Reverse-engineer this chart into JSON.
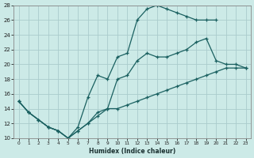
{
  "xlabel": "Humidex (Indice chaleur)",
  "xlim": [
    -0.5,
    23.5
  ],
  "ylim": [
    10,
    28
  ],
  "xticks": [
    0,
    1,
    2,
    3,
    4,
    5,
    6,
    7,
    8,
    9,
    10,
    11,
    12,
    13,
    14,
    15,
    16,
    17,
    18,
    19,
    20,
    21,
    22,
    23
  ],
  "yticks": [
    10,
    12,
    14,
    16,
    18,
    20,
    22,
    24,
    26,
    28
  ],
  "bg_color": "#cceae7",
  "grid_color": "#aacccc",
  "line_color": "#1a6060",
  "lines": [
    {
      "x": [
        0,
        1,
        2,
        3,
        4,
        5,
        6,
        7,
        8,
        9,
        10,
        11,
        12,
        13,
        14,
        15,
        16,
        17,
        18,
        19,
        20,
        21,
        22,
        23
      ],
      "y": [
        15,
        13.5,
        12.5,
        11.5,
        11,
        10,
        11.5,
        15.5,
        18.5,
        18,
        21,
        21.5,
        26,
        27.5,
        28,
        27.5,
        27,
        26.5,
        26,
        26,
        26,
        null,
        null,
        null
      ]
    },
    {
      "x": [
        0,
        1,
        2,
        3,
        4,
        5,
        6,
        7,
        8,
        9,
        10,
        11,
        12,
        13,
        14,
        15,
        16,
        17,
        18,
        19,
        20,
        21,
        22,
        23
      ],
      "y": [
        15,
        13.5,
        12.5,
        11.5,
        11,
        10,
        11,
        12,
        13.5,
        14,
        18,
        18.5,
        20.5,
        21.5,
        21,
        21,
        21.5,
        22,
        23,
        23.5,
        20.5,
        20,
        20,
        19.5
      ]
    },
    {
      "x": [
        0,
        1,
        2,
        3,
        4,
        5,
        6,
        7,
        8,
        9,
        10,
        11,
        12,
        13,
        14,
        15,
        16,
        17,
        18,
        19,
        20,
        21,
        22,
        23
      ],
      "y": [
        15,
        13.5,
        12.5,
        11.5,
        11,
        10,
        11,
        12,
        13,
        14,
        14,
        14.5,
        15,
        15.5,
        16,
        16.5,
        17,
        17.5,
        18,
        18.5,
        19,
        19.5,
        19.5,
        19.5
      ]
    }
  ]
}
